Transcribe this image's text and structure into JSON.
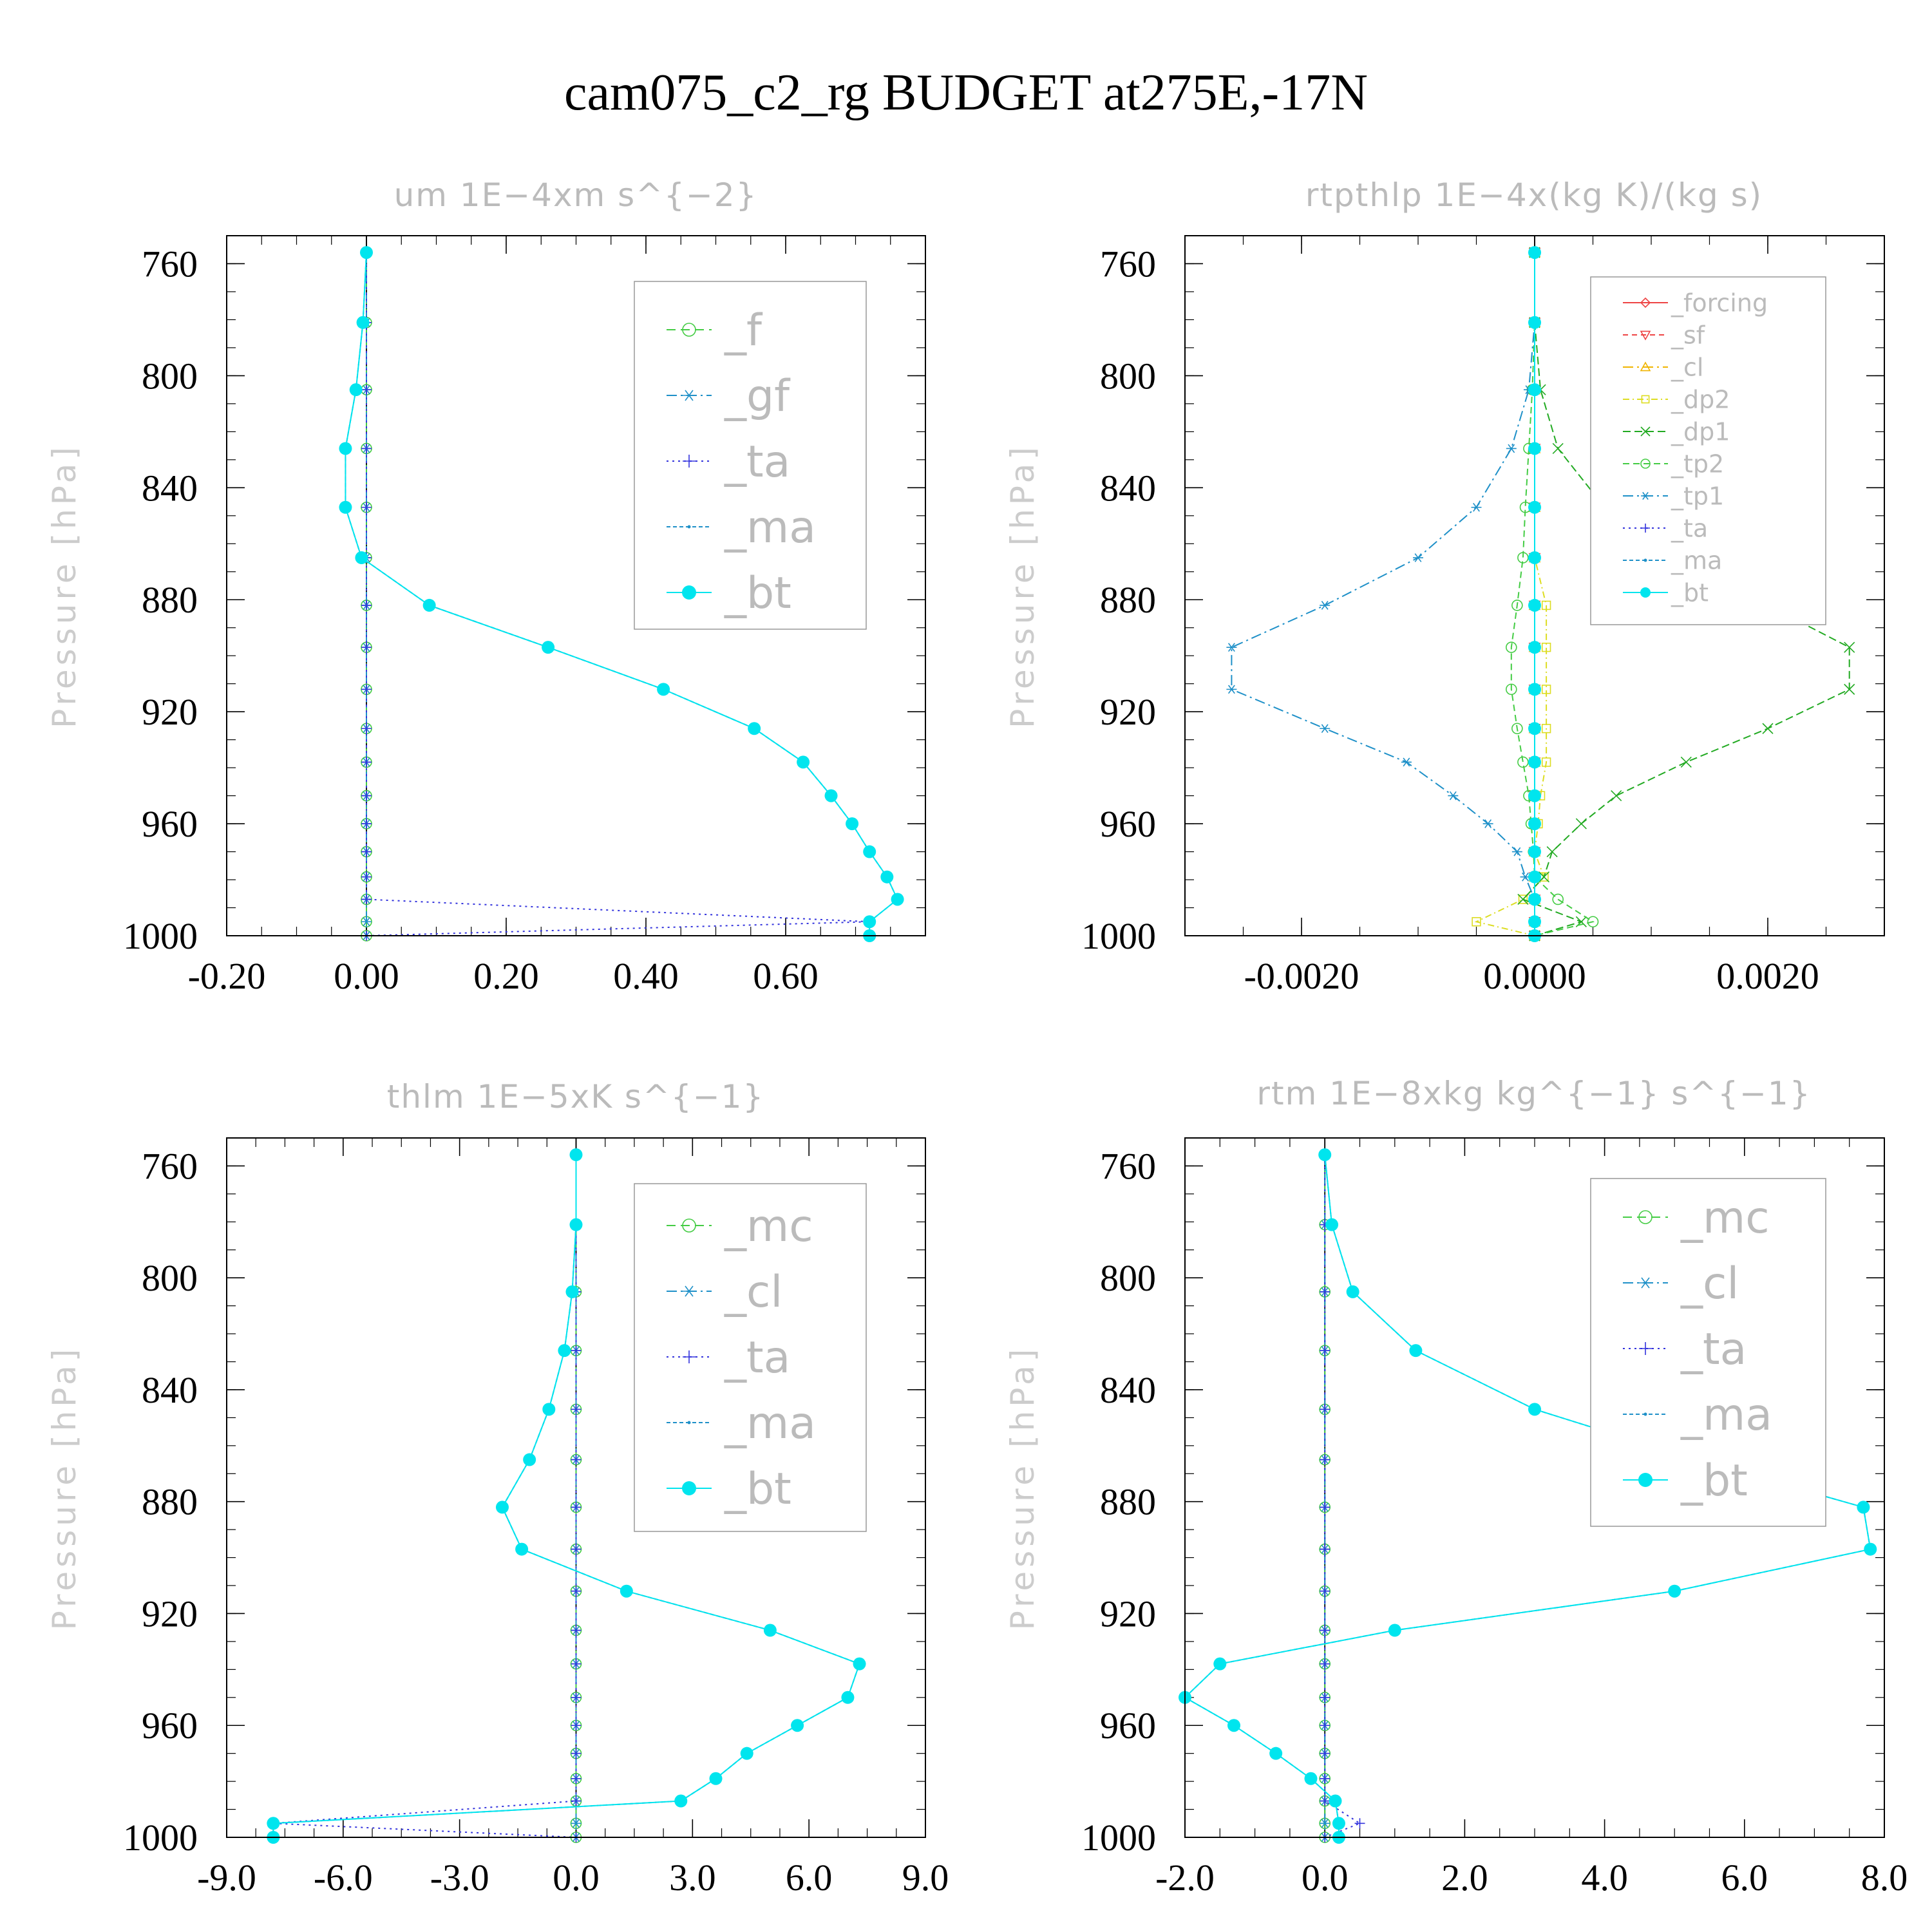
{
  "title": "cam075_c2_rg  BUDGET at275E,-17N",
  "chart_data": [
    {
      "type": "line",
      "title": "um   1E−4xm s^{−2}",
      "ylabel": "Pressure [hPa]",
      "xlim": [
        -0.2,
        0.8
      ],
      "ylim": [
        1000,
        750
      ],
      "xticks": [
        "-0.20",
        "0.00",
        "0.20",
        "0.40",
        "0.60"
      ],
      "xtick_values": [
        -0.2,
        0,
        0.2,
        0.4,
        0.6
      ],
      "yticks": [
        "760",
        "800",
        "840",
        "880",
        "920",
        "960",
        "1000"
      ],
      "ytick_values": [
        760,
        800,
        840,
        880,
        920,
        960,
        1000
      ],
      "levels": [
        756,
        781,
        805,
        826,
        847,
        865,
        882,
        897,
        912,
        926,
        938,
        950,
        960,
        970,
        979,
        987,
        995,
        1000
      ],
      "series": [
        {
          "name": "_f",
          "color": "#44cc44",
          "marker": "circle-open",
          "values": [
            0,
            0,
            0,
            0,
            0,
            0,
            0,
            0,
            0,
            0,
            0,
            0,
            0,
            0,
            0,
            0,
            0,
            0
          ]
        },
        {
          "name": "_gf",
          "color": "#1e90c8",
          "marker": "star",
          "values": [
            0,
            0,
            0,
            0,
            0,
            0,
            0,
            0,
            0,
            0,
            0,
            0,
            0,
            0,
            0,
            0,
            0,
            0
          ]
        },
        {
          "name": "_ta",
          "color": "#3333dd",
          "marker": "plus",
          "values": [
            0,
            0,
            0,
            0,
            0,
            0,
            0,
            0,
            0,
            0,
            0,
            0,
            0,
            0,
            0,
            0,
            0.72,
            0
          ]
        },
        {
          "name": "_ma",
          "color": "#1e90c8",
          "marker": "dot",
          "values": [
            0,
            -0.005,
            -0.015,
            -0.03,
            -0.03,
            -0.007,
            0.09,
            0.26,
            0.425,
            0.555,
            0.625,
            0.665,
            0.695,
            0.72,
            0.745,
            0.76,
            0.72,
            0.72
          ]
        },
        {
          "name": "_bt",
          "color": "#00e5ee",
          "marker": "circle-filled",
          "values": [
            0,
            -0.005,
            -0.015,
            -0.03,
            -0.03,
            -0.007,
            0.09,
            0.26,
            0.425,
            0.555,
            0.625,
            0.665,
            0.695,
            0.72,
            0.745,
            0.76,
            0.72,
            0.72
          ]
        }
      ],
      "legend": {
        "position": "top-right",
        "font_size": 68
      }
    },
    {
      "type": "line",
      "title": "rtpthlp   1E−4x(kg K)/(kg s)",
      "ylabel": "Pressure [hPa]",
      "xlim": [
        -0.003,
        0.003
      ],
      "ylim": [
        1000,
        750
      ],
      "xticks": [
        "-0.0020",
        "0.0000",
        "0.0020"
      ],
      "xtick_values": [
        -0.002,
        0,
        0.002
      ],
      "yticks": [
        "760",
        "800",
        "840",
        "880",
        "920",
        "960",
        "1000"
      ],
      "ytick_values": [
        760,
        800,
        840,
        880,
        920,
        960,
        1000
      ],
      "levels": [
        756,
        781,
        805,
        826,
        847,
        865,
        882,
        897,
        912,
        926,
        938,
        950,
        960,
        970,
        979,
        987,
        995,
        1000
      ],
      "series": [
        {
          "name": "_forcing",
          "color": "#ee4444",
          "marker": "diamond-open",
          "values": [
            0,
            0,
            0,
            0,
            0,
            0,
            0,
            0,
            0,
            0,
            0,
            0,
            0,
            0,
            0,
            0,
            0,
            0
          ]
        },
        {
          "name": "_sf",
          "color": "#ee4444",
          "marker": "triangle-down",
          "values": [
            0,
            0,
            0,
            0,
            0,
            0,
            0,
            0,
            0,
            0,
            0,
            0,
            0,
            0,
            0,
            0,
            0,
            0
          ]
        },
        {
          "name": "_cl",
          "color": "#f0b400",
          "marker": "triangle-up",
          "values": [
            0,
            0,
            0,
            0,
            0,
            0,
            0,
            0,
            0,
            0,
            0,
            0,
            0,
            0,
            0,
            0,
            0,
            0
          ]
        },
        {
          "name": "_dp2",
          "color": "#dddd22",
          "marker": "square-open",
          "values": [
            0,
            0,
            0,
            0,
            0,
            0,
            0.0001,
            0.0001,
            0.0001,
            0.0001,
            0.0001,
            5e-05,
            3e-05,
            0,
            8e-05,
            -0.0001,
            -0.0005,
            0
          ]
        },
        {
          "name": "_dp1",
          "color": "#22aa22",
          "marker": "x",
          "values": [
            0,
            0,
            5e-05,
            0.0002,
            0.0006,
            0.0013,
            0.002,
            0.0027,
            0.0027,
            0.002,
            0.0013,
            0.0007,
            0.0004,
            0.00015,
            8e-05,
            -0.0001,
            0.0004,
            0
          ]
        },
        {
          "name": "_tp2",
          "color": "#44cc44",
          "marker": "circle-open",
          "values": [
            0,
            0,
            -2e-05,
            -5e-05,
            -8e-05,
            -0.0001,
            -0.00015,
            -0.0002,
            -0.0002,
            -0.00015,
            -0.0001,
            -5e-05,
            -3e-05,
            -1e-05,
            0,
            0.0002,
            0.0005,
            0
          ]
        },
        {
          "name": "_tp1",
          "color": "#1e90c8",
          "marker": "star",
          "values": [
            0,
            0,
            -5e-05,
            -0.0002,
            -0.0005,
            -0.001,
            -0.0018,
            -0.0026,
            -0.0026,
            -0.0018,
            -0.0011,
            -0.0007,
            -0.0004,
            -0.00015,
            -8e-05,
            0,
            0,
            0
          ]
        },
        {
          "name": "_ta",
          "color": "#3333dd",
          "marker": "plus",
          "values": [
            0,
            0,
            0,
            0,
            0,
            0,
            0,
            0,
            0,
            0,
            0,
            0,
            0,
            0,
            0,
            0,
            0,
            0
          ]
        },
        {
          "name": "_ma",
          "color": "#1e90c8",
          "marker": "dot",
          "values": [
            0,
            0,
            0,
            0,
            0,
            0,
            0,
            0,
            0,
            0,
            0,
            0,
            0,
            0,
            0,
            0,
            0,
            0
          ]
        },
        {
          "name": "_bt",
          "color": "#00e5ee",
          "marker": "circle-filled",
          "values": [
            0,
            0,
            0,
            0,
            0,
            0,
            0,
            0,
            0,
            0,
            0,
            0,
            0,
            0,
            0,
            0,
            0,
            0
          ]
        }
      ],
      "legend": {
        "position": "top-right",
        "font_size": 38
      }
    },
    {
      "type": "line",
      "title": "thlm   1E−5xK s^{−1}",
      "ylabel": "Pressure [hPa]",
      "xlim": [
        -9,
        9
      ],
      "ylim": [
        1000,
        750
      ],
      "xticks": [
        "-9.0",
        "-6.0",
        "-3.0",
        "0.0",
        "3.0",
        "6.0",
        "9.0"
      ],
      "xtick_values": [
        -9,
        -6,
        -3,
        0,
        3,
        6,
        9
      ],
      "yticks": [
        "760",
        "800",
        "840",
        "880",
        "920",
        "960",
        "1000"
      ],
      "ytick_values": [
        760,
        800,
        840,
        880,
        920,
        960,
        1000
      ],
      "levels": [
        756,
        781,
        805,
        826,
        847,
        865,
        882,
        897,
        912,
        926,
        938,
        950,
        960,
        970,
        979,
        987,
        995,
        1000
      ],
      "series": [
        {
          "name": "_mc",
          "color": "#44cc44",
          "marker": "circle-open",
          "values": [
            0,
            0,
            0,
            0,
            0,
            0,
            0,
            0,
            0,
            0,
            0,
            0,
            0,
            0,
            0,
            0,
            0,
            0
          ]
        },
        {
          "name": "_cl",
          "color": "#1e90c8",
          "marker": "star",
          "values": [
            0,
            0,
            0,
            0,
            0,
            0,
            0,
            0,
            0,
            0,
            0,
            0,
            0,
            0,
            0,
            0,
            0,
            0
          ]
        },
        {
          "name": "_ta",
          "color": "#3333dd",
          "marker": "plus",
          "values": [
            0,
            0,
            0,
            0,
            0,
            0,
            0,
            0,
            0,
            0,
            0,
            0,
            0,
            0,
            0,
            0,
            -7.8,
            0
          ]
        },
        {
          "name": "_ma",
          "color": "#1e90c8",
          "marker": "dot",
          "values": [
            0,
            0,
            -0.1,
            -0.3,
            -0.7,
            -1.2,
            -1.9,
            -1.4,
            1.3,
            5.0,
            7.3,
            7.0,
            5.7,
            4.4,
            3.6,
            2.7,
            -7.8,
            -7.8
          ]
        },
        {
          "name": "_bt",
          "color": "#00e5ee",
          "marker": "circle-filled",
          "values": [
            0,
            0,
            -0.1,
            -0.3,
            -0.7,
            -1.2,
            -1.9,
            -1.4,
            1.3,
            5.0,
            7.3,
            7.0,
            5.7,
            4.4,
            3.6,
            2.7,
            -7.8,
            -7.8
          ]
        }
      ],
      "legend": {
        "position": "top-right",
        "font_size": 68
      }
    },
    {
      "type": "line",
      "title": "rtm   1E−8xkg kg^{−1} s^{−1}",
      "ylabel": "Pressure [hPa]",
      "xlim": [
        -2,
        8
      ],
      "ylim": [
        1000,
        750
      ],
      "xticks": [
        "-2.0",
        "0.0",
        "2.0",
        "4.0",
        "6.0",
        "8.0"
      ],
      "xtick_values": [
        -2,
        0,
        2,
        4,
        6,
        8
      ],
      "yticks": [
        "760",
        "800",
        "840",
        "880",
        "920",
        "960",
        "1000"
      ],
      "ytick_values": [
        760,
        800,
        840,
        880,
        920,
        960,
        1000
      ],
      "levels": [
        756,
        781,
        805,
        826,
        847,
        865,
        882,
        897,
        912,
        926,
        938,
        950,
        960,
        970,
        979,
        987,
        995,
        1000
      ],
      "series": [
        {
          "name": "_mc",
          "color": "#44cc44",
          "marker": "circle-open",
          "values": [
            0,
            0,
            0,
            0,
            0,
            0,
            0,
            0,
            0,
            0,
            0,
            0,
            0,
            0,
            0,
            0,
            0,
            0
          ]
        },
        {
          "name": "_cl",
          "color": "#1e90c8",
          "marker": "star",
          "values": [
            0,
            0,
            0,
            0,
            0,
            0,
            0,
            0,
            0,
            0,
            0,
            0,
            0,
            0,
            0,
            0,
            0,
            0
          ]
        },
        {
          "name": "_ta",
          "color": "#3333dd",
          "marker": "plus",
          "values": [
            0,
            0,
            0,
            0,
            0,
            0,
            0,
            0,
            0,
            0,
            0,
            0,
            0,
            0,
            0,
            0,
            0.5,
            0
          ]
        },
        {
          "name": "_ma",
          "color": "#1e90c8",
          "marker": "dot",
          "values": [
            0,
            0.1,
            0.4,
            1.3,
            3.0,
            5.3,
            7.7,
            7.8,
            5.0,
            1.0,
            -1.5,
            -2.0,
            -1.3,
            -0.7,
            -0.2,
            0.15,
            0.2,
            0.2
          ]
        },
        {
          "name": "_bt",
          "color": "#00e5ee",
          "marker": "circle-filled",
          "values": [
            0,
            0.1,
            0.4,
            1.3,
            3.0,
            5.3,
            7.7,
            7.8,
            5.0,
            1.0,
            -1.5,
            -2.0,
            -1.3,
            -0.7,
            -0.2,
            0.15,
            0.2,
            0.2
          ]
        }
      ],
      "legend": {
        "position": "top-right",
        "font_size": 68
      }
    }
  ]
}
